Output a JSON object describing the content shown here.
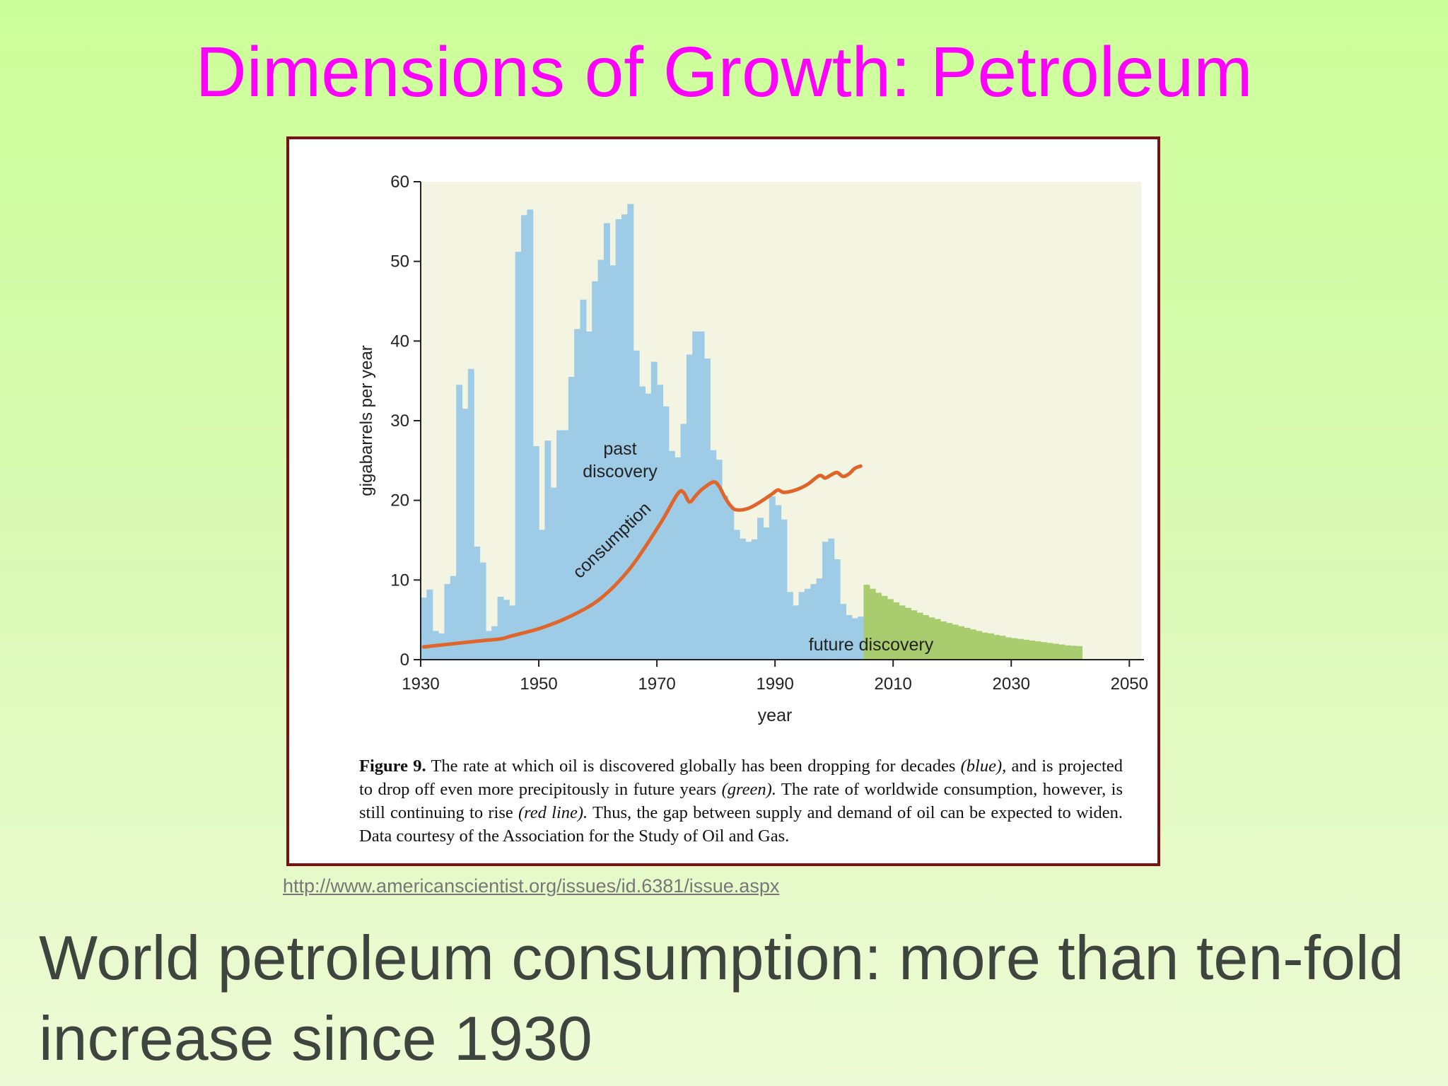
{
  "slide": {
    "title": "Dimensions of Growth: Petroleum",
    "source_url": "http://www.americanscientist.org/issues/id.6381/issue.aspx",
    "body_text": "World petroleum consumption: more than ten-fold increase since 1930"
  },
  "figure": {
    "caption": {
      "label": "Figure 9.",
      "part1": " The rate at which oil is discovered globally has been dropping for decades ",
      "blue_word": "(blue),",
      "part2": " and is projected to drop off even more precipitously in future years ",
      "green_word": "(green).",
      "part3": " The rate of worldwide consumption, however, is still continuing to rise ",
      "red_word": "(red line).",
      "part4": " Thus, the gap between supply and demand of oil can be expected to widen. Data courtesy of the Association for the Study of Oil and Gas."
    }
  },
  "colors": {
    "title": "#ff00ff",
    "past_discovery": "#9ecbe6",
    "future_discovery": "#a9cc6e",
    "consumption": "#e0652b",
    "plot_background": "#f3f5e2",
    "frame_border": "#7a1010"
  },
  "chart_data": {
    "type": "bar",
    "xlabel": "year",
    "ylabel": "gigabarrels per year",
    "xlim": [
      1930,
      2052
    ],
    "ylim": [
      0,
      60
    ],
    "x_ticks": [
      1930,
      1950,
      1970,
      1990,
      2010,
      2030,
      2050
    ],
    "y_ticks": [
      0,
      10,
      20,
      30,
      40,
      50,
      60
    ],
    "annotations": {
      "past": "past discovery",
      "consumption": "consumption",
      "future": "future discovery"
    },
    "series": [
      {
        "name": "past discovery",
        "kind": "bar",
        "x": [
          1930,
          1931,
          1932,
          1933,
          1934,
          1935,
          1936,
          1937,
          1938,
          1939,
          1940,
          1941,
          1942,
          1943,
          1944,
          1945,
          1946,
          1947,
          1948,
          1949,
          1950,
          1951,
          1952,
          1953,
          1954,
          1955,
          1956,
          1957,
          1958,
          1959,
          1960,
          1961,
          1962,
          1963,
          1964,
          1965,
          1966,
          1967,
          1968,
          1969,
          1970,
          1971,
          1972,
          1973,
          1974,
          1975,
          1976,
          1977,
          1978,
          1979,
          1980,
          1981,
          1982,
          1983,
          1984,
          1985,
          1986,
          1987,
          1988,
          1989,
          1990,
          1991,
          1992,
          1993,
          1994,
          1995,
          1996,
          1997,
          1998,
          1999,
          2000,
          2001,
          2002,
          2003,
          2004
        ],
        "values": [
          7.8,
          8.8,
          3.6,
          3.3,
          9.5,
          10.5,
          34.5,
          31.5,
          36.5,
          14.2,
          12.2,
          3.6,
          4.2,
          7.9,
          7.5,
          6.8,
          51.2,
          55.8,
          56.5,
          26.8,
          16.3,
          27.5,
          21.6,
          28.8,
          28.8,
          35.5,
          41.5,
          45.2,
          41.2,
          47.5,
          50.2,
          54.8,
          49.5,
          55.3,
          55.9,
          57.2,
          38.8,
          34.3,
          33.4,
          37.4,
          34.5,
          31.8,
          26.2,
          25.4,
          29.6,
          38.3,
          41.2,
          41.2,
          37.8,
          26.3,
          25.1,
          20.6,
          19.3,
          16.3,
          15.2,
          14.8,
          15.1,
          17.8,
          16.6,
          20.5,
          19.4,
          17.6,
          8.5,
          6.8,
          8.5,
          8.9,
          9.5,
          10.2,
          14.8,
          15.2,
          12.6,
          7.0,
          5.6,
          5.2,
          5.4
        ]
      },
      {
        "name": "future discovery",
        "kind": "bar",
        "x": [
          2005,
          2006,
          2007,
          2008,
          2009,
          2010,
          2011,
          2012,
          2013,
          2014,
          2015,
          2016,
          2017,
          2018,
          2019,
          2020,
          2021,
          2022,
          2023,
          2024,
          2025,
          2026,
          2027,
          2028,
          2029,
          2030,
          2031,
          2032,
          2033,
          2034,
          2035,
          2036,
          2037,
          2038,
          2039,
          2040,
          2041
        ],
        "values": [
          9.4,
          8.9,
          8.4,
          8.0,
          7.6,
          7.2,
          6.8,
          6.5,
          6.2,
          5.9,
          5.6,
          5.3,
          5.1,
          4.8,
          4.6,
          4.4,
          4.2,
          4.0,
          3.8,
          3.6,
          3.4,
          3.3,
          3.1,
          3.0,
          2.8,
          2.7,
          2.6,
          2.5,
          2.4,
          2.3,
          2.2,
          2.1,
          2.0,
          1.9,
          1.8,
          1.75,
          1.7
        ]
      },
      {
        "name": "consumption",
        "kind": "line",
        "x": [
          1930,
          1935,
          1940,
          1943,
          1945,
          1950,
          1955,
          1960,
          1965,
          1970,
          1973,
          1974,
          1975,
          1976,
          1977,
          1979,
          1980,
          1981,
          1982,
          1983,
          1985,
          1987,
          1989,
          1990,
          1991,
          1993,
          1995,
          1997,
          1998,
          1999,
          2000,
          2001,
          2002,
          2003,
          2004
        ],
        "values": [
          1.6,
          2.0,
          2.4,
          2.6,
          3.0,
          4.0,
          5.5,
          7.7,
          11.5,
          17.0,
          20.8,
          21.0,
          19.8,
          20.5,
          21.3,
          22.3,
          21.8,
          20.4,
          19.3,
          18.8,
          19.0,
          19.8,
          20.8,
          21.3,
          21.0,
          21.3,
          22.0,
          23.1,
          22.8,
          23.2,
          23.5,
          23.0,
          23.3,
          24.0,
          24.3
        ]
      }
    ]
  }
}
